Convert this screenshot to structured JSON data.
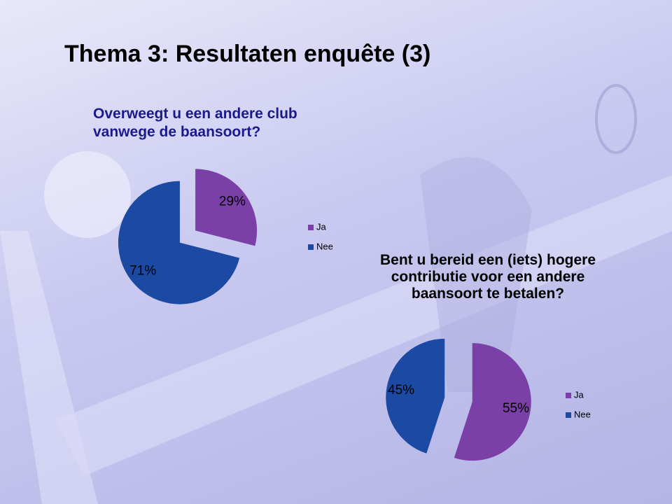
{
  "slide_title": "Thema 3: Resultaten enquête (3)",
  "chart_data": [
    {
      "type": "pie",
      "title": "Overweegt u een andere club\nvanwege de baansoort?",
      "categories": [
        "Ja",
        "Nee"
      ],
      "values": [
        29,
        71
      ],
      "value_labels": [
        "29%",
        "71%"
      ],
      "colors": [
        "#7a40a8",
        "#1c4aa2"
      ],
      "legend": "right"
    },
    {
      "type": "pie",
      "title": "Bent u bereid een (iets) hogere\ncontributie voor een andere\nbaansoort te betalen?",
      "categories": [
        "Ja",
        "Nee"
      ],
      "values": [
        55,
        45
      ],
      "value_labels": [
        "55%",
        "45%"
      ],
      "colors": [
        "#7a40a8",
        "#1c4aa2"
      ],
      "legend": "right"
    }
  ]
}
